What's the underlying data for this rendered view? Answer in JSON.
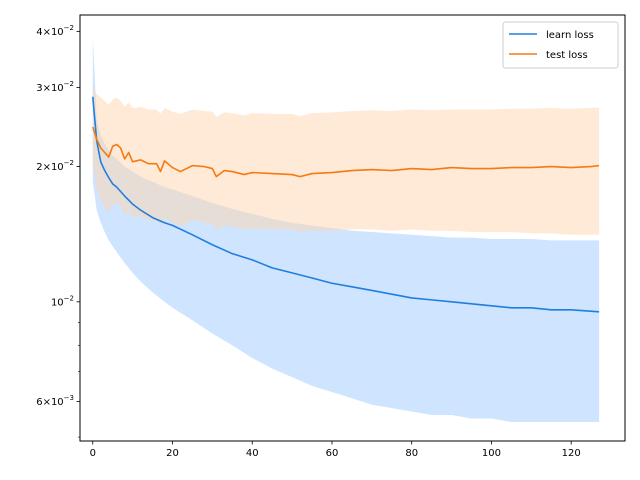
{
  "chart_data": {
    "type": "line",
    "title": "",
    "xlabel": "",
    "ylabel": "",
    "x_scale": "linear",
    "y_scale": "log",
    "xlim": [
      -3.2,
      133.5
    ],
    "ylim": [
      0.0049,
      0.0435
    ],
    "grid": false,
    "legend_position": "top-right",
    "x_ticks": [
      0,
      20,
      40,
      60,
      80,
      100,
      120
    ],
    "x_tick_labels": [
      "0",
      "20",
      "40",
      "60",
      "80",
      "100",
      "120"
    ],
    "y_major_ticks": [
      0.006,
      0.01,
      0.02,
      0.03,
      0.04
    ],
    "y_tick_labels": [
      {
        "mantissa": "6",
        "exp": "-3"
      },
      {
        "mantissa": "",
        "exp": "-2"
      },
      {
        "mantissa": "2",
        "exp": "-2"
      },
      {
        "mantissa": "3",
        "exp": "-2"
      },
      {
        "mantissa": "4",
        "exp": "-2"
      }
    ],
    "y_minor_ticks": [
      0.005,
      0.007,
      0.008,
      0.009
    ],
    "series": [
      {
        "name": "learn loss",
        "color": "#1f7fe0",
        "band_color": "#a6ceff",
        "x": [
          0,
          1,
          2,
          3,
          4,
          5,
          6,
          8,
          10,
          12,
          15,
          18,
          20,
          25,
          30,
          35,
          40,
          45,
          50,
          55,
          60,
          65,
          70,
          75,
          80,
          85,
          90,
          95,
          100,
          105,
          110,
          115,
          120,
          127
        ],
        "mean": [
          0.0286,
          0.0228,
          0.0205,
          0.0196,
          0.0189,
          0.0183,
          0.018,
          0.0172,
          0.0165,
          0.016,
          0.0154,
          0.015,
          0.0148,
          0.0141,
          0.0134,
          0.0128,
          0.0124,
          0.0119,
          0.0116,
          0.0113,
          0.011,
          0.0108,
          0.0106,
          0.0104,
          0.0102,
          0.0101,
          0.01,
          0.0099,
          0.0098,
          0.0097,
          0.0097,
          0.0096,
          0.0096,
          0.0095
        ],
        "upper": [
          0.039,
          0.0255,
          0.0235,
          0.0225,
          0.0218,
          0.0212,
          0.0208,
          0.02,
          0.0195,
          0.019,
          0.0185,
          0.018,
          0.0178,
          0.0172,
          0.0166,
          0.0161,
          0.0157,
          0.0153,
          0.015,
          0.0148,
          0.0146,
          0.0144,
          0.0143,
          0.0142,
          0.0141,
          0.014,
          0.0139,
          0.0139,
          0.0138,
          0.0138,
          0.0138,
          0.0137,
          0.0137,
          0.0137
        ],
        "lower": [
          0.0185,
          0.016,
          0.015,
          0.0143,
          0.0137,
          0.0133,
          0.0129,
          0.0122,
          0.0116,
          0.0111,
          0.0105,
          0.01,
          0.0097,
          0.0091,
          0.0085,
          0.008,
          0.0075,
          0.0071,
          0.0068,
          0.0065,
          0.0063,
          0.0061,
          0.0059,
          0.0058,
          0.0057,
          0.0056,
          0.0056,
          0.0055,
          0.0055,
          0.0054,
          0.0054,
          0.0054,
          0.0054,
          0.0054
        ]
      },
      {
        "name": "test loss",
        "color": "#f57a10",
        "band_color": "#ffd6b0",
        "x": [
          0,
          1,
          2,
          3,
          4,
          5,
          6,
          7,
          8,
          9,
          10,
          11,
          12,
          14,
          16,
          17,
          18,
          20,
          22,
          25,
          28,
          30,
          31,
          33,
          35,
          38,
          40,
          45,
          50,
          52,
          55,
          60,
          65,
          70,
          75,
          80,
          85,
          90,
          95,
          100,
          105,
          110,
          115,
          120,
          125,
          127
        ],
        "mean": [
          0.0245,
          0.023,
          0.022,
          0.0215,
          0.021,
          0.0222,
          0.0224,
          0.022,
          0.0208,
          0.0215,
          0.0205,
          0.0206,
          0.0207,
          0.0203,
          0.0203,
          0.0195,
          0.0206,
          0.0199,
          0.0195,
          0.0201,
          0.02,
          0.0198,
          0.019,
          0.0196,
          0.0195,
          0.0192,
          0.0194,
          0.0193,
          0.0192,
          0.019,
          0.0193,
          0.0194,
          0.0196,
          0.0197,
          0.0196,
          0.0198,
          0.0197,
          0.0199,
          0.0198,
          0.0198,
          0.0199,
          0.0199,
          0.02,
          0.0199,
          0.02,
          0.0201
        ],
        "upper": [
          0.03,
          0.029,
          0.0285,
          0.028,
          0.0275,
          0.0282,
          0.0285,
          0.028,
          0.0272,
          0.0278,
          0.027,
          0.027,
          0.0272,
          0.0268,
          0.0268,
          0.0262,
          0.027,
          0.0265,
          0.0262,
          0.0268,
          0.0266,
          0.0265,
          0.0258,
          0.0264,
          0.0263,
          0.026,
          0.0263,
          0.0262,
          0.0262,
          0.0259,
          0.0263,
          0.0264,
          0.0266,
          0.0267,
          0.0266,
          0.0268,
          0.0267,
          0.0268,
          0.0268,
          0.0268,
          0.0269,
          0.0269,
          0.027,
          0.0269,
          0.027,
          0.0271
        ],
        "lower": [
          0.02,
          0.0178,
          0.0168,
          0.0162,
          0.0158,
          0.0165,
          0.0166,
          0.0163,
          0.0155,
          0.016,
          0.0154,
          0.0155,
          0.0155,
          0.0152,
          0.0152,
          0.0147,
          0.0154,
          0.015,
          0.0147,
          0.0152,
          0.015,
          0.0149,
          0.0144,
          0.0148,
          0.0147,
          0.0145,
          0.0146,
          0.0145,
          0.0145,
          0.0143,
          0.0144,
          0.0144,
          0.0145,
          0.0145,
          0.0144,
          0.0145,
          0.0144,
          0.0144,
          0.0143,
          0.0143,
          0.0143,
          0.0142,
          0.0142,
          0.0141,
          0.0141,
          0.0141
        ]
      }
    ]
  }
}
